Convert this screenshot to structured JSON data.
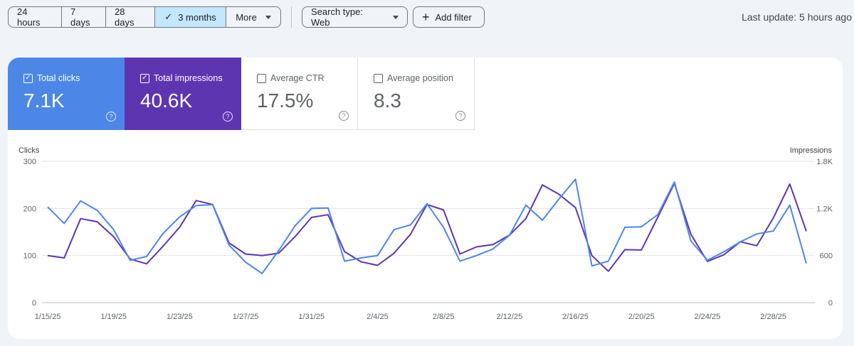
{
  "toolbar": {
    "ranges": [
      "24 hours",
      "7 days",
      "28 days",
      "3 months",
      "More"
    ],
    "active_range": "3 months",
    "search_type": "Search type: Web",
    "add_filter": "Add filter",
    "last_update": "Last update: 5 hours ago"
  },
  "metrics": [
    {
      "label": "Total clicks",
      "value": "7.1K",
      "checked": true
    },
    {
      "label": "Total impressions",
      "value": "40.6K",
      "checked": true
    },
    {
      "label": "Average CTR",
      "value": "17.5%",
      "checked": false
    },
    {
      "label": "Average position",
      "value": "8.3",
      "checked": false
    }
  ],
  "colors": {
    "clicks": "#4c87e8",
    "impressions": "#5e35b1"
  },
  "chart_data": {
    "type": "line",
    "ylabel": "Clicks",
    "y2label": "Impressions",
    "ylim": [
      0,
      300
    ],
    "y2lim": [
      0,
      1800
    ],
    "yticks": [
      "0",
      "100",
      "200",
      "300"
    ],
    "y2ticks": [
      "0",
      "600",
      "1.2K",
      "1.8K"
    ],
    "x_ticks": [
      "1/15/25",
      "1/19/25",
      "1/23/25",
      "1/27/25",
      "1/31/25",
      "2/4/25",
      "2/8/25",
      "2/12/25",
      "2/16/25",
      "2/20/25",
      "2/24/25",
      "2/28/25"
    ],
    "grid": true,
    "series": [
      {
        "name": "Clicks",
        "axis": "left",
        "values": [
          203,
          168,
          216,
          196,
          155,
          90,
          98,
          147,
          182,
          206,
          208,
          122,
          86,
          62,
          110,
          163,
          200,
          201,
          88,
          95,
          100,
          155,
          165,
          210,
          160,
          88,
          100,
          114,
          143,
          207,
          175,
          220,
          262,
          78,
          88,
          160,
          161,
          187,
          256,
          131,
          90,
          108,
          129,
          146,
          152,
          207,
          83
        ]
      },
      {
        "name": "Impressions",
        "axis": "right",
        "values": [
          600,
          570,
          1070,
          1030,
          840,
          555,
          495,
          720,
          960,
          1300,
          1250,
          760,
          620,
          600,
          630,
          840,
          1085,
          1120,
          650,
          520,
          475,
          630,
          870,
          1250,
          1180,
          620,
          710,
          740,
          860,
          1070,
          1500,
          1380,
          1210,
          600,
          400,
          675,
          670,
          1090,
          1520,
          870,
          525,
          610,
          775,
          725,
          1080,
          1510,
          910
        ]
      }
    ]
  }
}
